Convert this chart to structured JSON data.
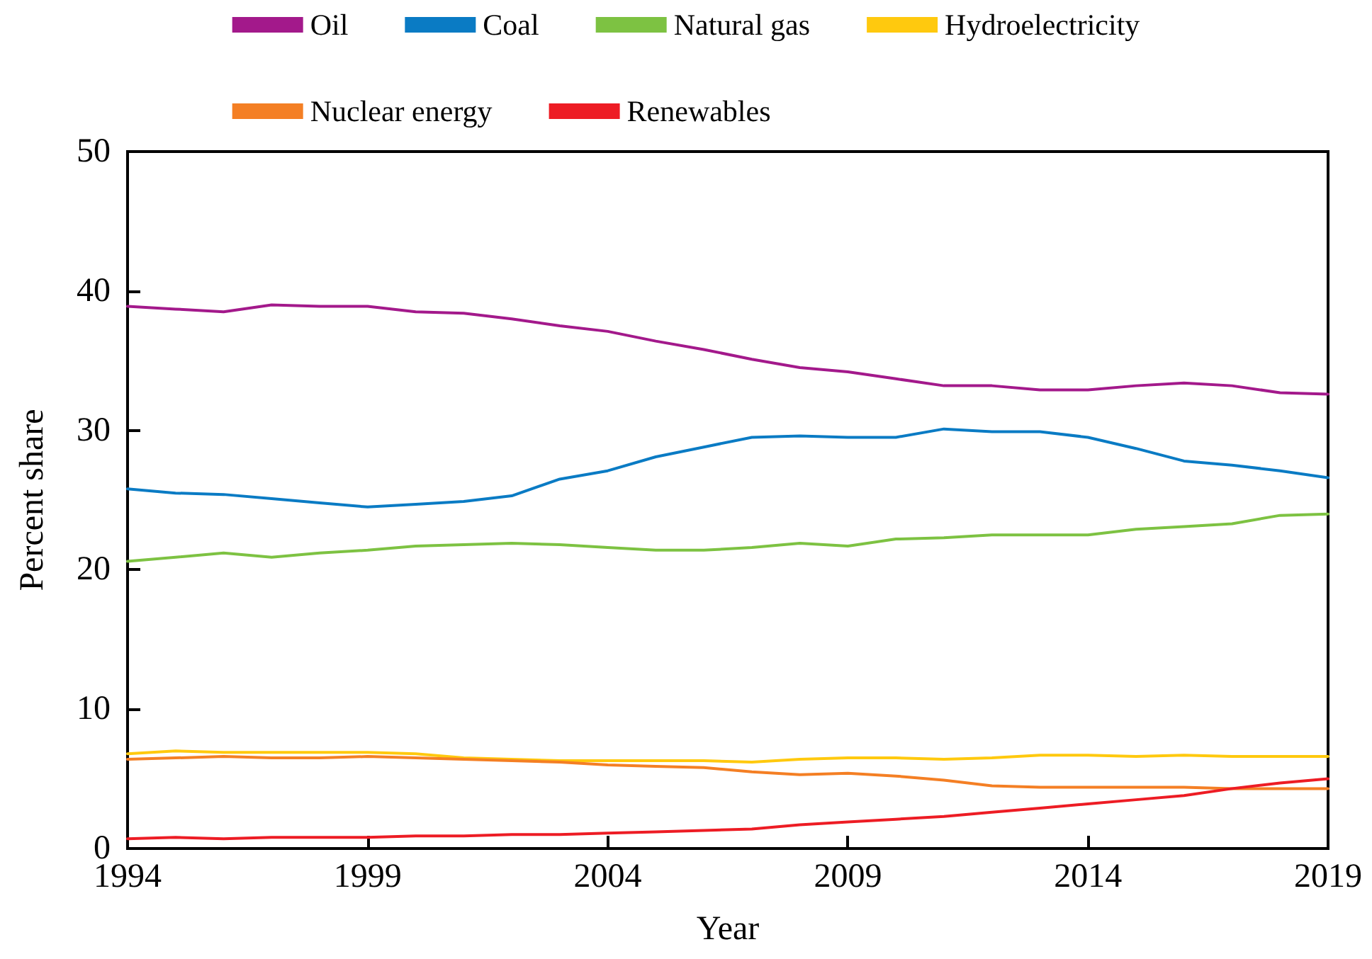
{
  "chart_data": {
    "type": "line",
    "xlabel": "Year",
    "ylabel": "Percent share",
    "x": [
      1994,
      1995,
      1996,
      1997,
      1998,
      1999,
      2000,
      2001,
      2002,
      2003,
      2004,
      2005,
      2006,
      2007,
      2008,
      2009,
      2010,
      2011,
      2012,
      2013,
      2014,
      2015,
      2016,
      2017,
      2018,
      2019
    ],
    "xlim": [
      1994,
      2019
    ],
    "xticks": [
      1994,
      1999,
      2004,
      2009,
      2014,
      2019
    ],
    "ylim": [
      0,
      50
    ],
    "yticks": [
      0,
      10,
      20,
      30,
      40,
      50
    ],
    "grid": false,
    "legend": "top",
    "marker": "none",
    "line_style": "solid",
    "series": [
      {
        "name": "Oil",
        "color": "#a3198b",
        "values": [
          38.9,
          38.7,
          38.5,
          39.0,
          38.9,
          38.9,
          38.5,
          38.4,
          38.0,
          37.5,
          37.1,
          36.4,
          35.8,
          35.1,
          34.5,
          34.2,
          33.7,
          33.2,
          33.2,
          32.9,
          32.9,
          33.2,
          33.4,
          33.2,
          32.7,
          32.6
        ]
      },
      {
        "name": "Coal",
        "color": "#0a7bc4",
        "values": [
          25.8,
          25.5,
          25.4,
          25.1,
          24.8,
          24.5,
          24.7,
          24.9,
          25.3,
          26.5,
          27.1,
          28.1,
          28.8,
          29.5,
          29.6,
          29.5,
          29.5,
          30.1,
          29.9,
          29.9,
          29.5,
          28.7,
          27.8,
          27.5,
          27.1,
          26.6
        ]
      },
      {
        "name": "Natural gas",
        "color": "#7dc242",
        "values": [
          20.6,
          20.9,
          21.2,
          20.9,
          21.2,
          21.4,
          21.7,
          21.8,
          21.9,
          21.8,
          21.6,
          21.4,
          21.4,
          21.6,
          21.9,
          21.7,
          22.2,
          22.3,
          22.5,
          22.5,
          22.5,
          22.9,
          23.1,
          23.3,
          23.9,
          24.0
        ]
      },
      {
        "name": "Hydroelectricity",
        "color": "#ffc90e",
        "values": [
          6.8,
          7.0,
          6.9,
          6.9,
          6.9,
          6.9,
          6.8,
          6.5,
          6.4,
          6.3,
          6.3,
          6.3,
          6.3,
          6.2,
          6.4,
          6.5,
          6.5,
          6.4,
          6.5,
          6.7,
          6.7,
          6.6,
          6.7,
          6.6,
          6.6,
          6.6
        ]
      },
      {
        "name": "Nuclear energy",
        "color": "#f47f24",
        "values": [
          6.4,
          6.5,
          6.6,
          6.5,
          6.5,
          6.6,
          6.5,
          6.4,
          6.3,
          6.2,
          6.0,
          5.9,
          5.8,
          5.5,
          5.3,
          5.4,
          5.2,
          4.9,
          4.5,
          4.4,
          4.4,
          4.4,
          4.4,
          4.3,
          4.3,
          4.3
        ]
      },
      {
        "name": "Renewables",
        "color": "#ed1c24",
        "values": [
          0.7,
          0.8,
          0.7,
          0.8,
          0.8,
          0.8,
          0.9,
          0.9,
          1.0,
          1.0,
          1.1,
          1.2,
          1.3,
          1.4,
          1.7,
          1.9,
          2.1,
          2.3,
          2.6,
          2.9,
          3.2,
          3.5,
          3.8,
          4.3,
          4.7,
          5.0
        ]
      }
    ]
  }
}
